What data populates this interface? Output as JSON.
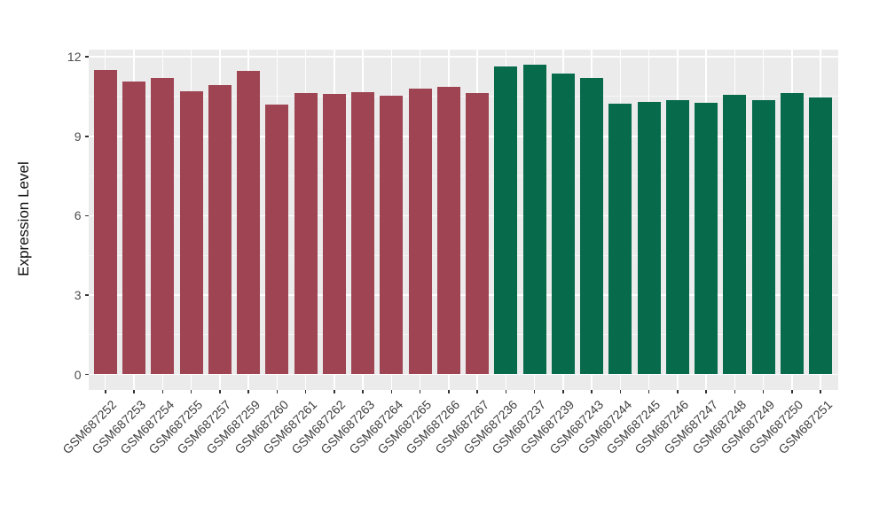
{
  "chart_data": {
    "type": "bar",
    "title": "",
    "xlabel": "",
    "ylabel": "Expression Level",
    "ylim": [
      0,
      12
    ],
    "yticks": [
      0,
      3,
      6,
      9,
      12
    ],
    "yticks_minor": [
      1.5,
      4.5,
      7.5,
      10.5
    ],
    "grid": "major-and-minor-white-on-gray-panel",
    "legend_position": "none",
    "panel_background": "#EBEBEB",
    "gridline_color": "#ffffff",
    "group_colors": {
      "maroon": "#9E4452",
      "green": "#066A4B"
    },
    "bars": [
      {
        "label": "GSM687252",
        "value": 11.52,
        "group": "maroon",
        "color": "#9E4452"
      },
      {
        "label": "GSM687253",
        "value": 11.07,
        "group": "maroon",
        "color": "#9E4452"
      },
      {
        "label": "GSM687254",
        "value": 11.21,
        "group": "maroon",
        "color": "#9E4452"
      },
      {
        "label": "GSM687255",
        "value": 10.7,
        "group": "maroon",
        "color": "#9E4452"
      },
      {
        "label": "GSM687257",
        "value": 10.93,
        "group": "maroon",
        "color": "#9E4452"
      },
      {
        "label": "GSM687259",
        "value": 11.46,
        "group": "maroon",
        "color": "#9E4452"
      },
      {
        "label": "GSM687260",
        "value": 10.2,
        "group": "maroon",
        "color": "#9E4452"
      },
      {
        "label": "GSM687261",
        "value": 10.63,
        "group": "maroon",
        "color": "#9E4452"
      },
      {
        "label": "GSM687262",
        "value": 10.59,
        "group": "maroon",
        "color": "#9E4452"
      },
      {
        "label": "GSM687263",
        "value": 10.65,
        "group": "maroon",
        "color": "#9E4452"
      },
      {
        "label": "GSM687264",
        "value": 10.54,
        "group": "maroon",
        "color": "#9E4452"
      },
      {
        "label": "GSM687265",
        "value": 10.79,
        "group": "maroon",
        "color": "#9E4452"
      },
      {
        "label": "GSM687266",
        "value": 10.87,
        "group": "maroon",
        "color": "#9E4452"
      },
      {
        "label": "GSM687267",
        "value": 10.62,
        "group": "maroon",
        "color": "#9E4452"
      },
      {
        "label": "GSM687236",
        "value": 11.65,
        "group": "green",
        "color": "#066A4B"
      },
      {
        "label": "GSM687237",
        "value": 11.69,
        "group": "green",
        "color": "#066A4B"
      },
      {
        "label": "GSM687239",
        "value": 11.37,
        "group": "green",
        "color": "#066A4B"
      },
      {
        "label": "GSM687243",
        "value": 11.19,
        "group": "green",
        "color": "#066A4B"
      },
      {
        "label": "GSM687244",
        "value": 10.23,
        "group": "green",
        "color": "#066A4B"
      },
      {
        "label": "GSM687245",
        "value": 10.31,
        "group": "green",
        "color": "#066A4B"
      },
      {
        "label": "GSM687246",
        "value": 10.37,
        "group": "green",
        "color": "#066A4B"
      },
      {
        "label": "GSM687247",
        "value": 10.27,
        "group": "green",
        "color": "#066A4B"
      },
      {
        "label": "GSM687248",
        "value": 10.57,
        "group": "green",
        "color": "#066A4B"
      },
      {
        "label": "GSM687249",
        "value": 10.35,
        "group": "green",
        "color": "#066A4B"
      },
      {
        "label": "GSM687250",
        "value": 10.63,
        "group": "green",
        "color": "#066A4B"
      },
      {
        "label": "GSM687251",
        "value": 10.48,
        "group": "green",
        "color": "#066A4B"
      }
    ]
  }
}
